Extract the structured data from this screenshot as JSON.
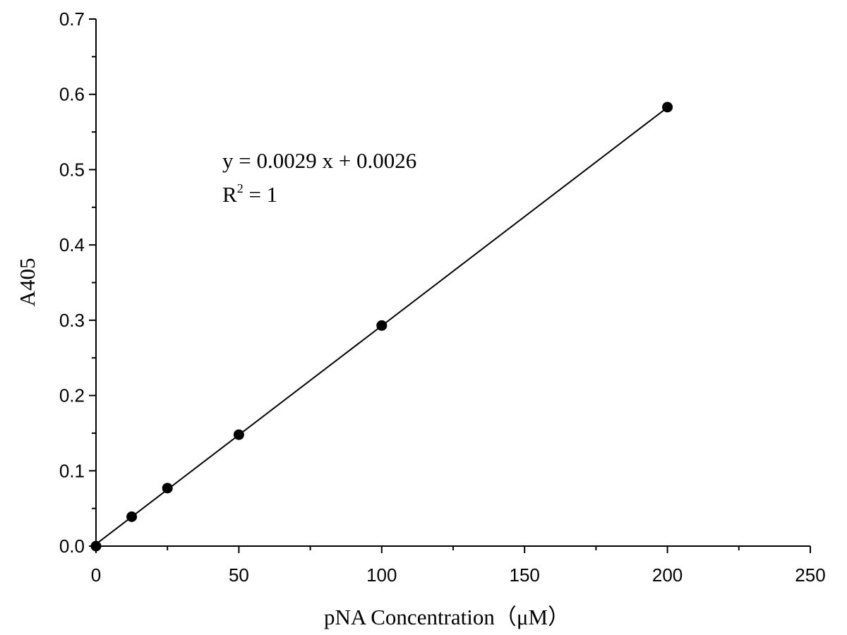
{
  "chart_data": {
    "type": "scatter",
    "title": "",
    "xlabel": "pNA Concentration（μM）",
    "ylabel": "A405",
    "xlim": [
      0,
      250
    ],
    "ylim": [
      0,
      0.7
    ],
    "xticks": [
      "0",
      "50",
      "100",
      "150",
      "200",
      "250"
    ],
    "yticks": [
      "0.0",
      "0.1",
      "0.2",
      "0.3",
      "0.4",
      "0.5",
      "0.6",
      "0.7"
    ],
    "grid": false,
    "legend": "none",
    "series": [
      {
        "x": [
          0,
          12.5,
          25,
          50,
          100,
          200
        ],
        "y": [
          0.0,
          0.039,
          0.077,
          0.148,
          0.293,
          0.583
        ],
        "marker": "filled-circle",
        "color": "#000000"
      }
    ],
    "fit_line": {
      "slope": 0.0029,
      "intercept": 0.0026,
      "x_range": [
        0,
        200
      ],
      "color": "#000000"
    },
    "annotations": {
      "equation": "y = 0.0029 x + 0.0026",
      "r2_prefix": "R",
      "r2_exp": "2",
      "r2_suffix": " = 1"
    }
  }
}
